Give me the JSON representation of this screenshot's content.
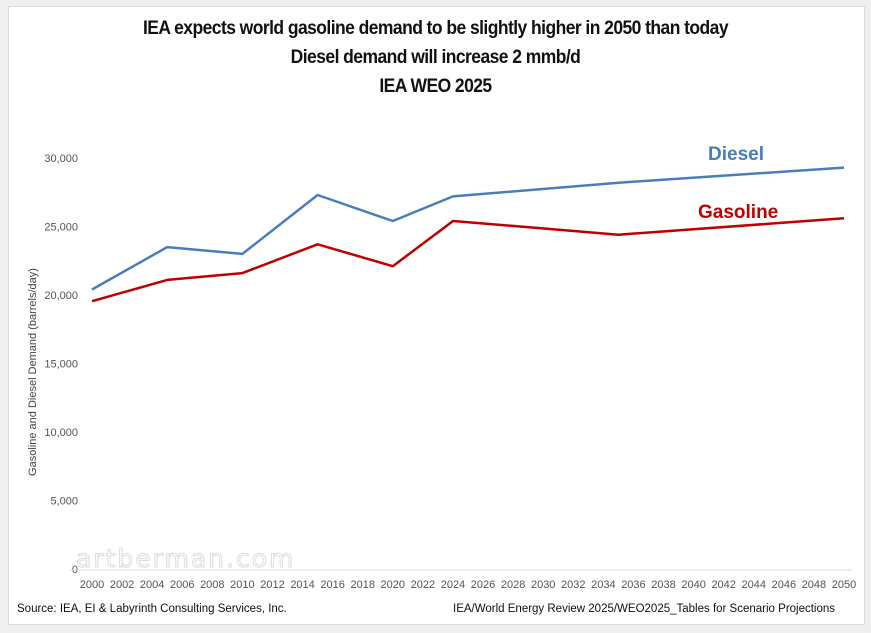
{
  "titles": [
    "IEA expects world gasoline demand to be slightly higher in 2050 than today",
    "Diesel demand will increase 2 mmb/d",
    "IEA WEO 2025"
  ],
  "footer": {
    "source": "Source: IEA, EI & Labyrinth Consulting Services, Inc.",
    "reference": "IEA/World Energy Review 2025/WEO2025_Tables for Scenario Projections"
  },
  "watermark": "artberman.com",
  "chart_data": {
    "type": "line",
    "title": "IEA expects world gasoline demand to be slightly higher in 2050 than today / Diesel demand will increase 2 mmb/d / IEA WEO 2025",
    "xlabel": "",
    "ylabel": "Gasoline and Diesel Demand (barrels/day)",
    "xlim": [
      2000,
      2050
    ],
    "ylim": [
      0,
      30000
    ],
    "yticks": [
      0,
      5000,
      10000,
      15000,
      20000,
      25000,
      30000
    ],
    "ytick_labels": [
      "0",
      "5,000",
      "10,000",
      "15,000",
      "20,000",
      "25,000",
      "30,000"
    ],
    "xticks": [
      2000,
      2002,
      2004,
      2006,
      2008,
      2010,
      2012,
      2014,
      2016,
      2018,
      2020,
      2022,
      2024,
      2026,
      2028,
      2030,
      2032,
      2034,
      2036,
      2038,
      2040,
      2042,
      2044,
      2046,
      2048,
      2050
    ],
    "grid": false,
    "legend": "inline labels near line ends (top-right)",
    "series": [
      {
        "name": "Diesel",
        "color": "#4a7ebb",
        "x": [
          2000,
          2005,
          2010,
          2015,
          2020,
          2024,
          2035,
          2050
        ],
        "values": [
          20400,
          23500,
          23000,
          27300,
          25400,
          27200,
          28200,
          29300
        ]
      },
      {
        "name": "Gasoline",
        "color": "#c00000",
        "x": [
          2000,
          2005,
          2010,
          2015,
          2020,
          2024,
          2035,
          2050
        ],
        "values": [
          19550,
          21100,
          21600,
          23700,
          22100,
          25400,
          24400,
          25600
        ]
      }
    ]
  }
}
